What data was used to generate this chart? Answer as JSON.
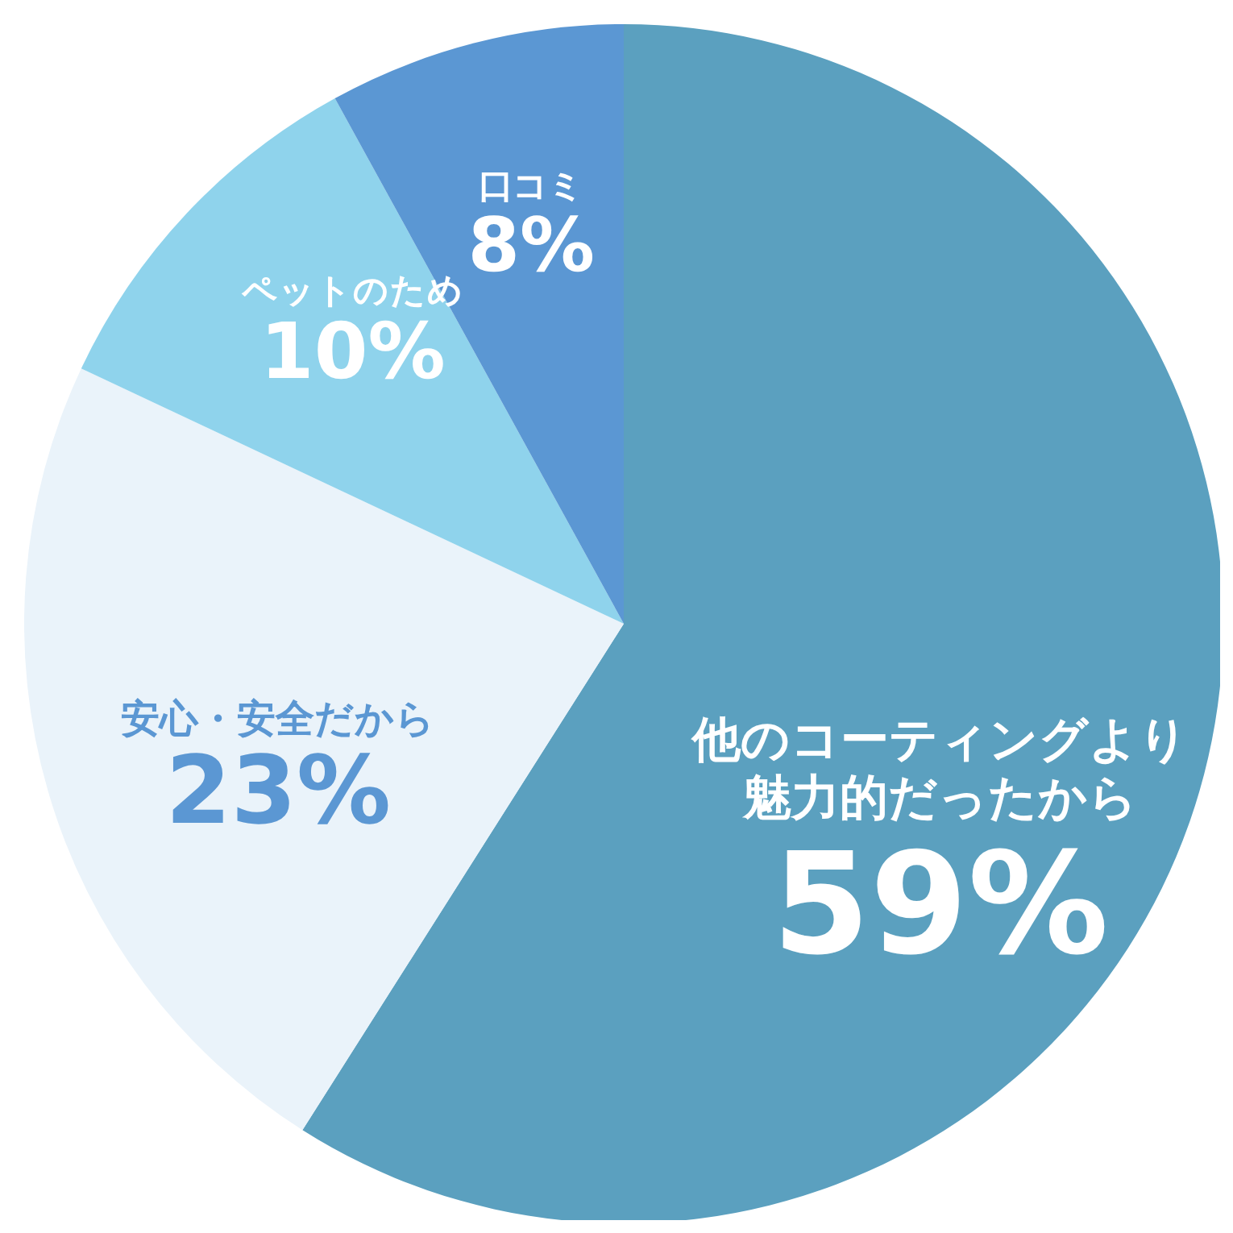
{
  "chart_data": {
    "type": "pie",
    "categories": [
      "他のコーティングより魅力的だったから",
      "安心・安全だから",
      "ペットのため",
      "口コミ"
    ],
    "values": [
      59,
      23,
      10,
      8
    ],
    "colors": [
      "#5ba0bf",
      "#eaf3fa",
      "#8fd3ec",
      "#5b97d3"
    ],
    "value_labels": [
      "59%",
      "23%",
      "10%",
      "8%"
    ]
  }
}
